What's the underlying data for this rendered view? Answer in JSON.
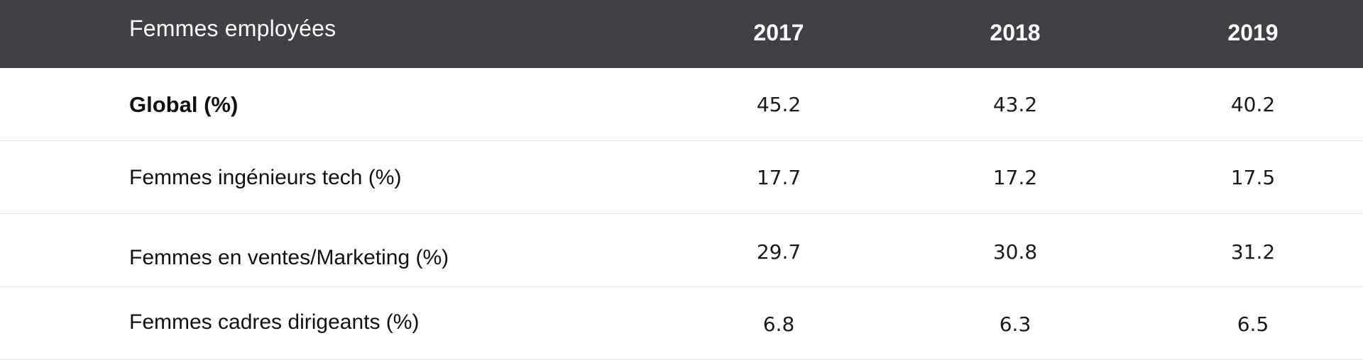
{
  "table": {
    "header": {
      "label": "Femmes employées",
      "years": [
        "2017",
        "2018",
        "2019"
      ]
    },
    "rows": [
      {
        "label": "Global (%)",
        "values": [
          "45.2",
          "43.2",
          "40.2"
        ]
      },
      {
        "label": "Femmes ingénieurs tech (%)",
        "values": [
          "17.7",
          "17.2",
          "17.5"
        ]
      },
      {
        "label": "Femmes en ventes/Marketing (%)",
        "values": [
          "29.7",
          "30.8",
          "31.2"
        ]
      },
      {
        "label": "Femmes cadres dirigeants (%)",
        "values": [
          "6.8",
          "6.3",
          "6.5"
        ]
      }
    ]
  },
  "colors": {
    "header_background": "#414145",
    "header_text": "#ffffff",
    "row_divider": "#e2e2e2"
  }
}
